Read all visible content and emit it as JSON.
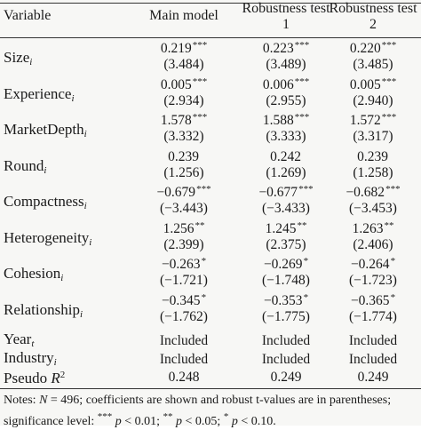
{
  "header": {
    "variable": "Variable",
    "main_model": "Main model",
    "robust1_line1": "Robustness test",
    "robust1_line2": "1",
    "robust2_line1": "Robustness test",
    "robust2_line2": "2"
  },
  "rows": [
    {
      "name": "Size",
      "sub": "i",
      "c1": "0.219",
      "s1": "***",
      "c2": "0.223",
      "s2": "***",
      "c3": "0.220",
      "s3": "***",
      "t1": "(3.484)",
      "t2": "(3.489)",
      "t3": "(3.485)"
    },
    {
      "name": "Experience",
      "sub": "i",
      "c1": "0.005",
      "s1": "***",
      "c2": "0.006",
      "s2": "***",
      "c3": "0.005",
      "s3": "***",
      "t1": "(2.934)",
      "t2": "(2.955)",
      "t3": "(2.940)"
    },
    {
      "name": "MarketDepth",
      "sub": "i",
      "c1": "1.578",
      "s1": "***",
      "c2": "1.588",
      "s2": "***",
      "c3": "1.572",
      "s3": "***",
      "t1": "(3.332)",
      "t2": "(3.333)",
      "t3": "(3.317)"
    },
    {
      "name": "Round",
      "sub": "i",
      "c1": "0.239",
      "s1": "",
      "c2": "0.242",
      "s2": "",
      "c3": "0.239",
      "s3": "",
      "t1": "(1.256)",
      "t2": "(1.269)",
      "t3": "(1.258)"
    },
    {
      "name": "Compactness",
      "sub": "i",
      "c1": "−0.679",
      "s1": "***",
      "c2": "−0.677",
      "s2": "***",
      "c3": "−0.682",
      "s3": "***",
      "t1": "(−3.443)",
      "t2": "(−3.433)",
      "t3": "(−3.453)"
    },
    {
      "name": "Heterogeneity",
      "sub": "i",
      "c1": "1.256",
      "s1": "**",
      "c2": "1.245",
      "s2": "**",
      "c3": "1.263",
      "s3": "**",
      "t1": "(2.399)",
      "t2": "(2.375)",
      "t3": "(2.406)"
    },
    {
      "name": "Cohesion",
      "sub": "i",
      "c1": "−0.263",
      "s1": "*",
      "c2": "−0.269",
      "s2": "*",
      "c3": "−0.264",
      "s3": "*",
      "t1": "(−1.721)",
      "t2": "(−1.748)",
      "t3": "(−1.723)"
    },
    {
      "name": "Relationship",
      "sub": "i",
      "c1": "−0.345",
      "s1": "*",
      "c2": "−0.353",
      "s2": "*",
      "c3": "−0.365",
      "s3": "*",
      "t1": "(−1.762)",
      "t2": "(−1.775)",
      "t3": "(−1.774)"
    }
  ],
  "year": {
    "name": "Year",
    "sub": "t",
    "c1": "Included",
    "c2": "Included",
    "c3": "Included"
  },
  "industry": {
    "name": "Industry",
    "sub": "i",
    "c1": "Included",
    "c2": "Included",
    "c3": "Included"
  },
  "pseudo": {
    "name": "Pseudo",
    "r": "R",
    "sup": "2",
    "c1": "0.248",
    "c2": "0.249",
    "c3": "0.249"
  },
  "notes": {
    "label": "Notes:",
    "n": "N",
    "n_value": " = 496; coefficients are shown and robust t-values are in parentheses; significance level: ",
    "s3": "***",
    "p1": "p",
    "v1": " < 0.01; ",
    "s2": "**",
    "p2": "p",
    "v2": " < 0.05; ",
    "s1": "*",
    "p3": "p",
    "v3": " < 0.10."
  }
}
